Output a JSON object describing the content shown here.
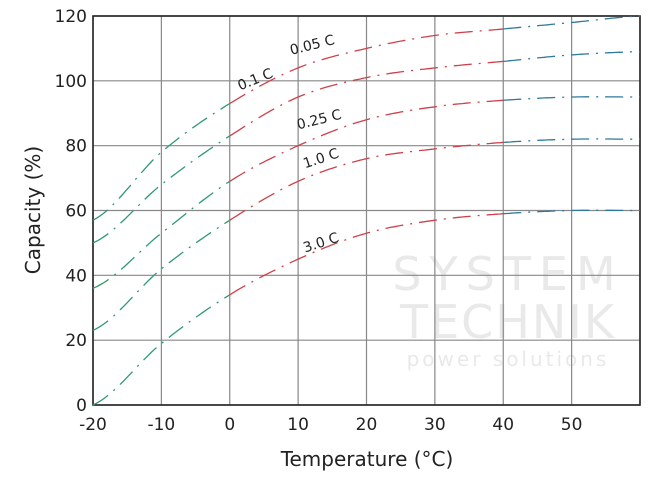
{
  "chart_data": {
    "type": "line",
    "title": "",
    "xlabel": "Temperature (°C)",
    "ylabel": "Capacity (%)",
    "xlim": [
      -20,
      60
    ],
    "ylim": [
      0,
      120
    ],
    "xticks": [
      -20,
      -10,
      0,
      10,
      20,
      30,
      40,
      50
    ],
    "yticks": [
      0,
      20,
      40,
      60,
      80,
      100,
      120
    ],
    "xtick_labels": [
      "-20",
      "-10",
      "0",
      "10",
      "20",
      "30",
      "40",
      "50"
    ],
    "ytick_labels": [
      "0",
      "20",
      "40",
      "60",
      "80",
      "100",
      "120"
    ],
    "grid": true,
    "legend": "none",
    "line_style": "dash-dot",
    "segment_colors": {
      "below_0": "#2e9a6e",
      "0_to_40": "#d0404a",
      "above_40": "#2f7a9c"
    },
    "x": [
      -20,
      -10,
      0,
      10,
      20,
      30,
      40,
      50,
      60
    ],
    "series": [
      {
        "name": "0.05 C",
        "values": [
          57,
          78,
          93,
          104,
          110,
          114,
          116,
          118,
          120
        ]
      },
      {
        "name": "0.1 C",
        "values": [
          50,
          68,
          83,
          95,
          101,
          104,
          106,
          108,
          109
        ]
      },
      {
        "name": "0.25 C",
        "values": [
          36,
          53,
          69,
          80,
          88,
          92,
          94,
          95,
          95
        ]
      },
      {
        "name": "1.0 C",
        "values": [
          23,
          42,
          57,
          69,
          76,
          79,
          81,
          82,
          82
        ]
      },
      {
        "name": "3.0 C",
        "values": [
          0,
          19,
          34,
          45,
          53,
          57,
          59,
          60,
          60
        ]
      }
    ]
  },
  "watermark": {
    "line1": "SYSTEM",
    "line2": "TECHNIK",
    "line3": "power solutions"
  }
}
